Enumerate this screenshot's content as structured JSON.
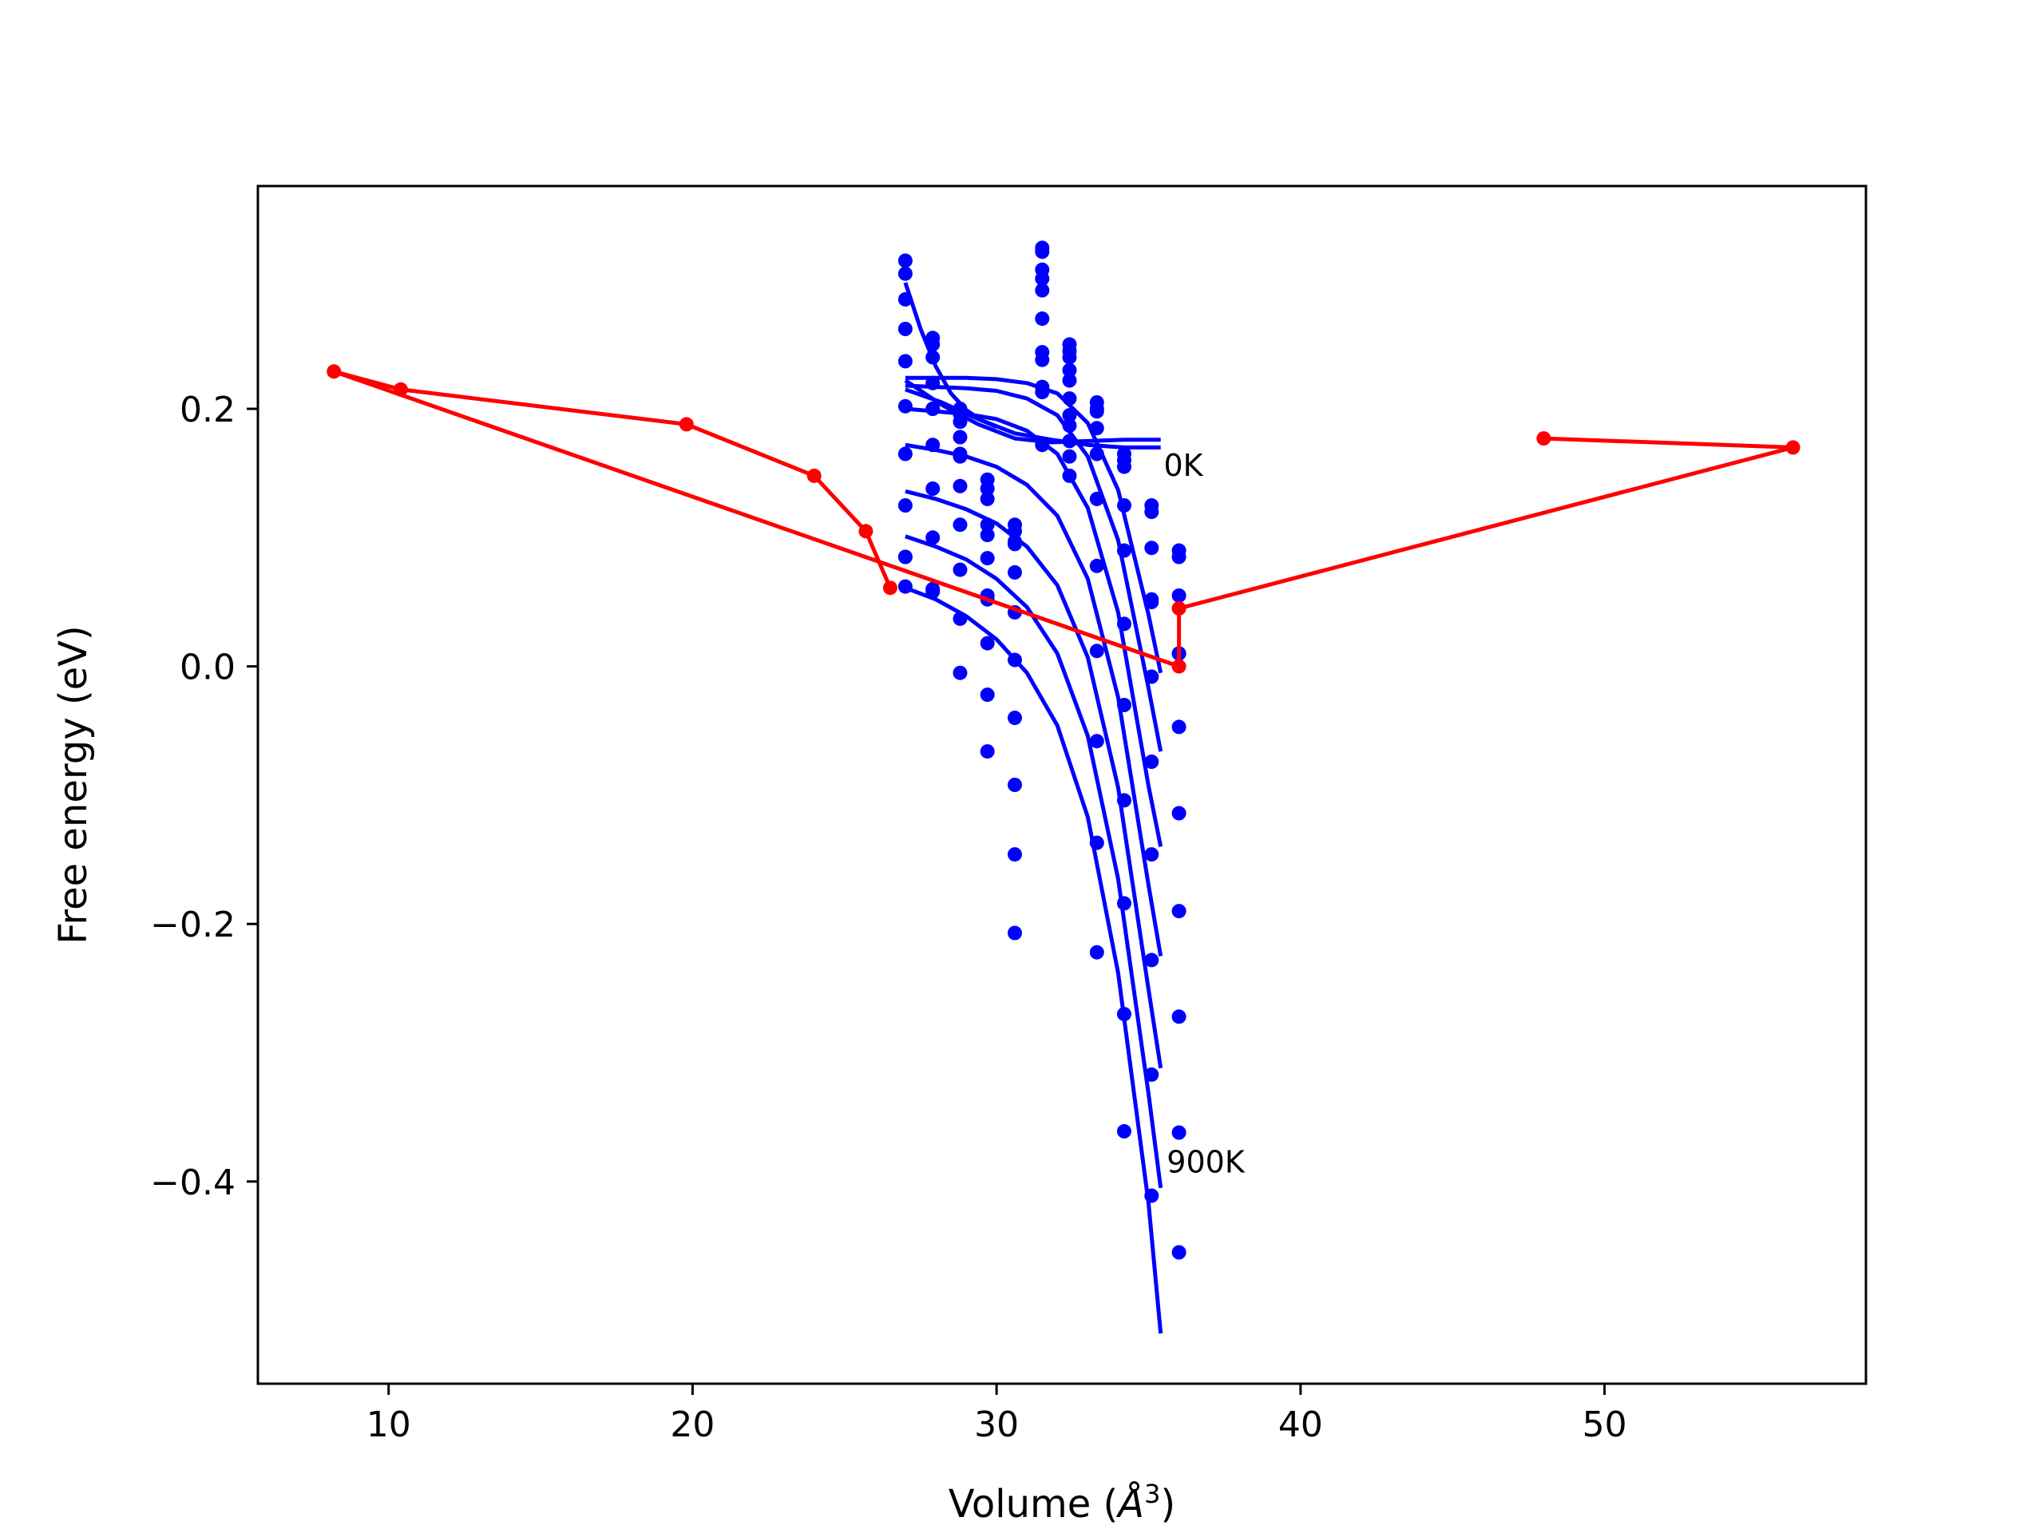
{
  "chart_data": {
    "type": "scatter",
    "title": "",
    "xlabel": "Volume (",
    "xlabel_symbol": "Å",
    "xlabel_exp": "3",
    "xlabel_end": ")",
    "ylabel": "Free energy (eV)",
    "xlim": [
      5.7,
      58.6
    ],
    "ylim": [
      -0.557,
      0.373
    ],
    "xticks": [
      10,
      20,
      30,
      40,
      50
    ],
    "yticks": [
      0.2,
      0.0,
      -0.2,
      -0.4
    ],
    "xtick_labels": [
      "10",
      "20",
      "30",
      "40",
      "50"
    ],
    "ytick_labels": [
      "0.2",
      "0.0",
      "−0.2",
      "−0.4"
    ],
    "grid": false,
    "legend": "none",
    "colors": {
      "fit": "#0000ff",
      "points": "#0000ff",
      "path": "#ff0000",
      "axes": "#000000"
    },
    "annotations": [
      {
        "text": "0K",
        "x": 35.5,
        "y": 0.148
      },
      {
        "text": "900K",
        "x": 35.6,
        "y": -0.393
      }
    ],
    "scatter_x": [
      27.0,
      27.9,
      28.8,
      29.7,
      30.6,
      31.5,
      32.4,
      33.3,
      34.2,
      35.1,
      36.0
    ],
    "scatter_series": [
      [
        0.305,
        0.25,
        0.196,
        0.13,
        0.11,
        0.322,
        0.25,
        0.205,
        0.165,
        0.12,
        0.085
      ],
      [
        0.315,
        0.255,
        0.2,
        0.145,
        0.105,
        0.325,
        0.245,
        0.2,
        0.16,
        0.125,
        0.09
      ],
      [
        0.285,
        0.24,
        0.19,
        0.138,
        0.097,
        0.308,
        0.24,
        0.198,
        0.155,
        0.092,
        0.055
      ],
      [
        0.262,
        0.22,
        0.178,
        0.11,
        0.095,
        0.292,
        0.23,
        0.185,
        0.125,
        0.05,
        0.01
      ],
      [
        0.237,
        0.2,
        0.165,
        0.084,
        0.073,
        0.27,
        0.222,
        0.165,
        0.09,
        -0.008,
        -0.047
      ],
      [
        0.202,
        0.172,
        0.14,
        0.052,
        0.042,
        0.244,
        0.208,
        0.13,
        0.033,
        -0.074,
        -0.114
      ],
      [
        0.165,
        0.138,
        0.11,
        0.018,
        0.005,
        0.213,
        0.187,
        0.078,
        -0.03,
        -0.146,
        -0.19
      ],
      [
        0.125,
        0.1,
        0.075,
        -0.022,
        -0.04,
        0.172,
        0.163,
        0.012,
        -0.104,
        -0.228,
        -0.272
      ],
      [
        0.085,
        0.058,
        0.037,
        -0.066,
        -0.092,
        0.301,
        0.195,
        -0.058,
        -0.184,
        -0.317,
        -0.362
      ],
      [
        0.062,
        0.06,
        -0.005,
        0.102,
        -0.146,
        0.238,
        0.175,
        -0.137,
        -0.27,
        -0.411,
        -0.455
      ],
      [
        0.085,
        0.2,
        0.163,
        0.055,
        -0.207,
        0.217,
        0.148,
        -0.222,
        -0.361,
        0.052,
        0.01
      ]
    ],
    "fit_curves": [
      {
        "name": "0K",
        "x": [
          27.0,
          28.2,
          29.4,
          30.6,
          31.8,
          33.0,
          34.2,
          35.4
        ],
        "y": [
          0.222,
          0.203,
          0.188,
          0.177,
          0.174,
          0.175,
          0.176,
          0.176
        ]
      },
      {
        "x": [
          27.0,
          28.2,
          29.4,
          30.6,
          31.8,
          33.0,
          34.2,
          35.4
        ],
        "y": [
          0.215,
          0.205,
          0.192,
          0.181,
          0.176,
          0.172,
          0.17,
          0.17
        ]
      },
      {
        "x": [
          27.0,
          28.0,
          29.0,
          30.0,
          31.0,
          32.0,
          33.0,
          34.0,
          35.0,
          35.4
        ],
        "y": [
          0.224,
          0.224,
          0.224,
          0.223,
          0.22,
          0.212,
          0.189,
          0.137,
          0.04,
          -0.005
        ]
      },
      {
        "x": [
          27.0,
          28.0,
          29.0,
          30.0,
          31.0,
          32.0,
          33.0,
          34.0,
          35.0,
          35.4
        ],
        "y": [
          0.218,
          0.217,
          0.216,
          0.214,
          0.208,
          0.195,
          0.163,
          0.098,
          -0.017,
          -0.066
        ]
      },
      {
        "x": [
          27.0,
          28.0,
          29.0,
          30.0,
          31.0,
          32.0,
          33.0,
          34.0,
          35.0,
          35.4
        ],
        "y": [
          0.2,
          0.198,
          0.196,
          0.192,
          0.183,
          0.165,
          0.123,
          0.042,
          -0.093,
          -0.14
        ]
      },
      {
        "x": [
          27.0,
          28.0,
          29.0,
          30.0,
          31.0,
          32.0,
          33.0,
          34.0,
          35.0,
          35.4
        ],
        "y": [
          0.172,
          0.168,
          0.163,
          0.155,
          0.141,
          0.117,
          0.068,
          -0.024,
          -0.17,
          -0.225
        ]
      },
      {
        "x": [
          27.0,
          28.0,
          29.0,
          30.0,
          31.0,
          32.0,
          33.0,
          34.0,
          35.0,
          35.4
        ],
        "y": [
          0.136,
          0.13,
          0.122,
          0.111,
          0.093,
          0.063,
          0.007,
          -0.094,
          -0.251,
          -0.312
        ]
      },
      {
        "x": [
          27.0,
          28.0,
          29.0,
          30.0,
          31.0,
          32.0,
          33.0,
          34.0,
          35.0,
          35.4
        ],
        "y": [
          0.101,
          0.093,
          0.083,
          0.068,
          0.046,
          0.01,
          -0.054,
          -0.165,
          -0.332,
          -0.405
        ]
      },
      {
        "name": "900K",
        "x": [
          27.0,
          28.0,
          29.0,
          30.0,
          31.0,
          32.0,
          33.0,
          34.0,
          35.0,
          35.4
        ],
        "y": [
          0.061,
          0.052,
          0.039,
          0.021,
          -0.005,
          -0.046,
          -0.117,
          -0.238,
          -0.417,
          -0.518
        ]
      },
      {
        "x": [
          27.0,
          27.5,
          28.0,
          28.5,
          29.0,
          29.5,
          30.0
        ],
        "y": [
          0.298,
          0.262,
          0.233,
          0.212,
          0.199,
          0.191,
          0.186
        ]
      }
    ],
    "red_path": {
      "x": [
        26.5,
        25.7,
        24.0,
        19.8,
        10.4,
        8.2,
        36.0,
        36.0,
        56.2,
        48.0
      ],
      "y": [
        0.061,
        0.105,
        0.148,
        0.188,
        0.215,
        0.229,
        0.0,
        0.045,
        0.17,
        0.177
      ]
    }
  }
}
